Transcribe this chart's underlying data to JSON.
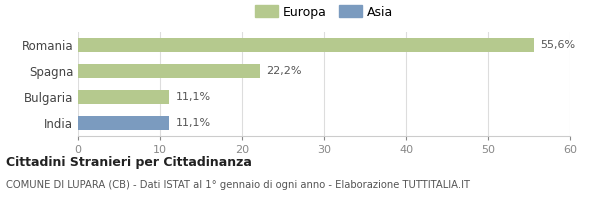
{
  "categories": [
    "Romania",
    "Spagna",
    "Bulgaria",
    "India"
  ],
  "values": [
    55.6,
    22.2,
    11.1,
    11.1
  ],
  "bar_colors": [
    "#b5c98e",
    "#b5c98e",
    "#b5c98e",
    "#7b9bbf"
  ],
  "label_texts": [
    "55,6%",
    "22,2%",
    "11,1%",
    "11,1%"
  ],
  "xlim": [
    0,
    60
  ],
  "xticks": [
    0,
    10,
    20,
    30,
    40,
    50,
    60
  ],
  "legend_items": [
    {
      "label": "Europa",
      "color": "#b5c98e"
    },
    {
      "label": "Asia",
      "color": "#7b9bbf"
    }
  ],
  "title_bold": "Cittadini Stranieri per Cittadinanza",
  "subtitle": "COMUNE DI LUPARA (CB) - Dati ISTAT al 1° gennaio di ogni anno - Elaborazione TUTTITALIA.IT",
  "bg_color": "#ffffff",
  "bar_height": 0.55,
  "label_fontsize": 8,
  "tick_fontsize": 8,
  "category_fontsize": 8.5
}
